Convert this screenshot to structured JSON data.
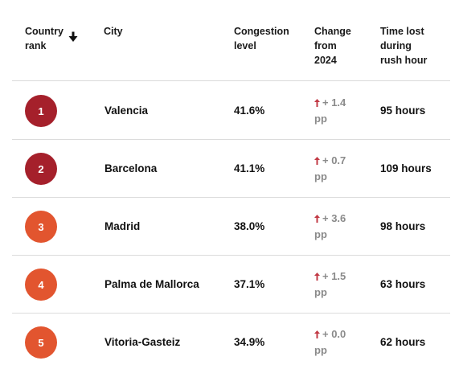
{
  "colors": {
    "rank_dark": "#A5202B",
    "rank_orange": "#E2552F",
    "change_up_arrow": "#C23A45",
    "change_text": "#8A8A8A",
    "divider": "#DCDCDC"
  },
  "header": {
    "rank_line1": "Country",
    "rank_line2": "rank",
    "sort_icon": "arrow-down-icon",
    "city": "City",
    "congestion_line1": "Congestion",
    "congestion_line2": "level",
    "change_line1": "Change",
    "change_line2": "from",
    "change_line3": "2024",
    "time_line1": "Time lost",
    "time_line2": "during",
    "time_line3": "rush hour"
  },
  "rows": [
    {
      "rank": "1",
      "city": "Valencia",
      "congestion": "41.6%",
      "change": "+ 1.4",
      "change_unit": "pp",
      "time_lost": "95 hours",
      "change_icon": "arrow-up-icon"
    },
    {
      "rank": "2",
      "city": "Barcelona",
      "congestion": "41.1%",
      "change": "+ 0.7",
      "change_unit": "pp",
      "time_lost": "109 hours",
      "change_icon": "arrow-up-icon"
    },
    {
      "rank": "3",
      "city": "Madrid",
      "congestion": "38.0%",
      "change": "+ 3.6",
      "change_unit": "pp",
      "time_lost": "98 hours",
      "change_icon": "arrow-up-icon"
    },
    {
      "rank": "4",
      "city": "Palma de Mallorca",
      "congestion": "37.1%",
      "change": "+ 1.5",
      "change_unit": "pp",
      "time_lost": "63 hours",
      "change_icon": "arrow-up-icon"
    },
    {
      "rank": "5",
      "city": "Vitoria-Gasteiz",
      "congestion": "34.9%",
      "change": "+ 0.0",
      "change_unit": "pp",
      "time_lost": "62 hours",
      "change_icon": "arrow-up-icon"
    }
  ]
}
